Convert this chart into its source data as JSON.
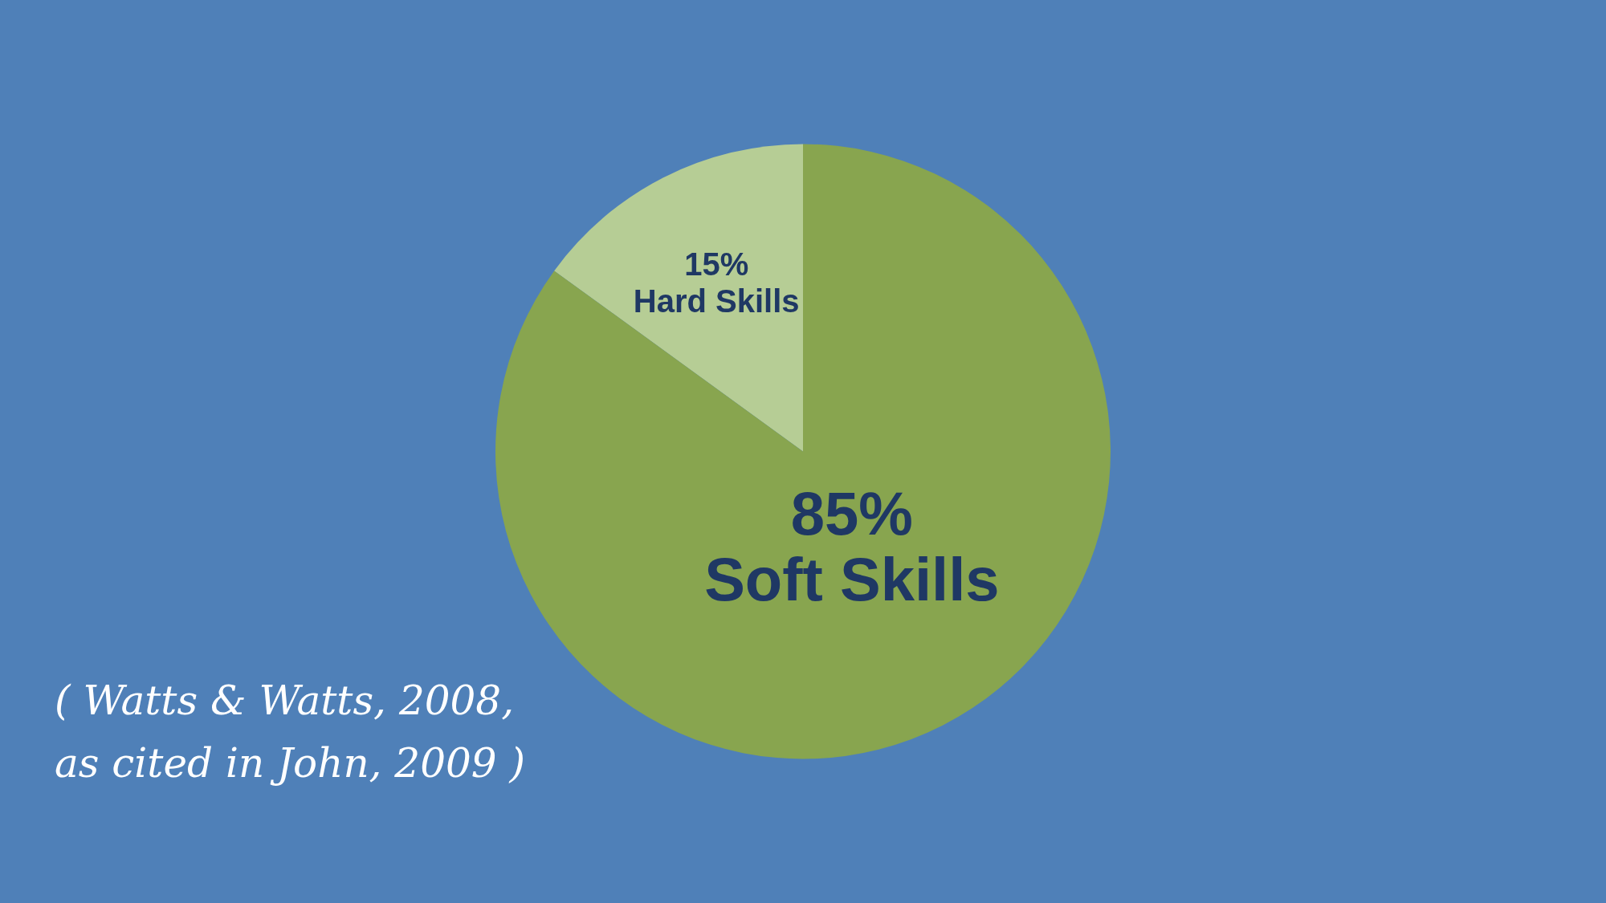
{
  "chart_data": {
    "type": "pie",
    "categories": [
      "Hard Skills",
      "Soft Skills"
    ],
    "values": [
      15,
      85
    ],
    "colors": [
      "#b6cd95",
      "#88a54f"
    ],
    "value_labels": [
      "15%",
      "85%"
    ],
    "annotations": [
      "( Watts & Watts, 2008,\nas cited in John, 2009 )"
    ]
  }
}
